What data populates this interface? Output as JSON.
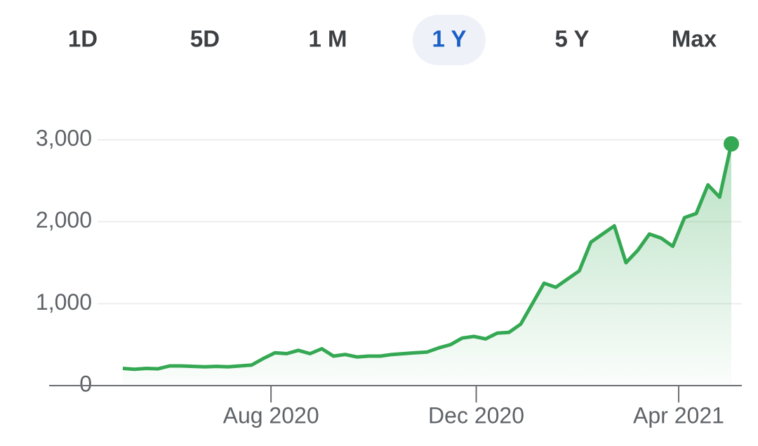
{
  "tabs": [
    "1D",
    "5D",
    "1 M",
    "1 Y",
    "5 Y",
    "Max"
  ],
  "selected_tab": 3,
  "chart_data": {
    "type": "area",
    "series": [
      {
        "color": "#34a853",
        "values": [
          210,
          200,
          210,
          205,
          240,
          240,
          235,
          230,
          235,
          230,
          240,
          250,
          330,
          400,
          390,
          430,
          390,
          450,
          360,
          380,
          350,
          360,
          360,
          380,
          390,
          400,
          410,
          460,
          500,
          580,
          600,
          570,
          640,
          650,
          750,
          1000,
          1250,
          1200,
          1300,
          1400,
          1750,
          1850,
          1950,
          1500,
          1650,
          1850,
          1800,
          1700,
          2050,
          2100,
          2450,
          2300,
          2950
        ]
      }
    ],
    "xlim": [
      -6.3,
      52.9
    ],
    "xticks": [
      {
        "value": 12.66,
        "label": "Aug 2020"
      },
      {
        "value": 30.2,
        "label": "Dec 2020"
      },
      {
        "value": 47.5,
        "label": "Apr 2021"
      }
    ],
    "ylim": [
      0,
      3000
    ],
    "yticks": [
      0,
      {
        "value": 1000,
        "label": "1,000"
      },
      {
        "value": 2000,
        "label": "2,000"
      },
      {
        "value": 3000,
        "label": "3,000"
      }
    ],
    "grid": true
  }
}
